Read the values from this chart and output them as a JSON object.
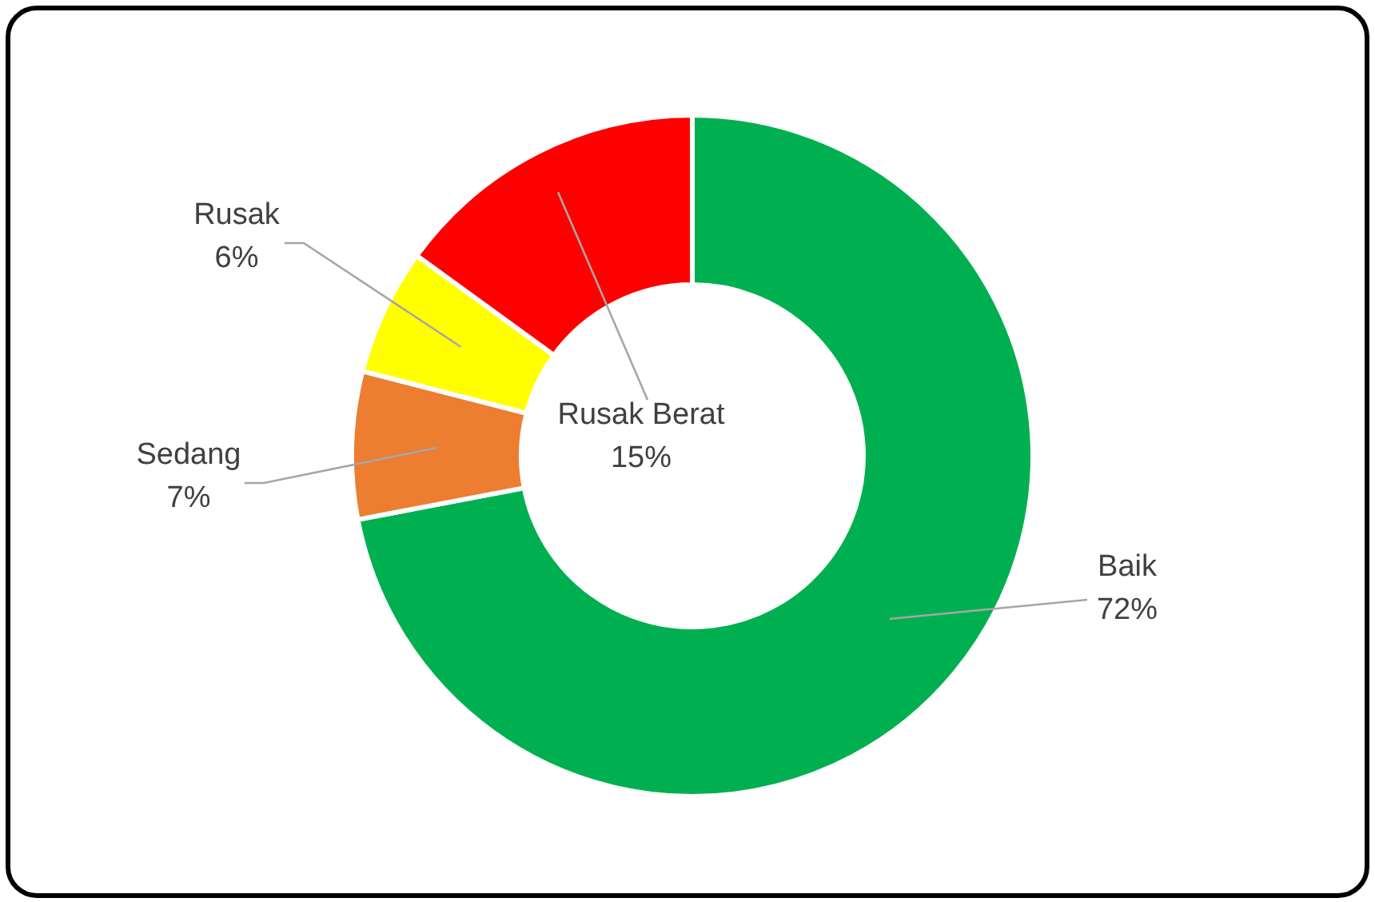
{
  "chart_data": {
    "type": "donut",
    "categories": [
      "Baik",
      "Sedang",
      "Rusak",
      "Rusak Berat"
    ],
    "values": [
      72,
      7,
      6,
      15
    ],
    "colors": [
      "#00b050",
      "#ed7d31",
      "#ffff00",
      "#ff0000"
    ],
    "value_labels": [
      "72%",
      "7%",
      "6%",
      "15%"
    ]
  }
}
